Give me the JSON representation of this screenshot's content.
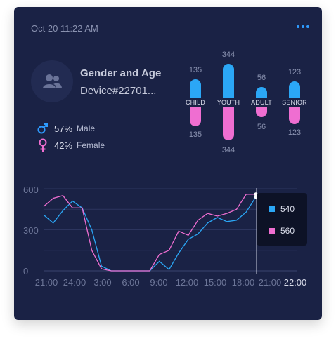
{
  "card": {
    "timestamp": "Oct 20 11:22 AM",
    "menu_icon": "more-horizontal-icon",
    "title": "Gender and Age",
    "device": "Device#22701...",
    "avatar_icon": "users-icon"
  },
  "gender": [
    {
      "label": "Male",
      "percent": "57%",
      "icon": "male-icon",
      "color": "#2e9bff"
    },
    {
      "label": "Female",
      "percent": "42%",
      "icon": "female-icon",
      "color": "#ef6ed1"
    }
  ],
  "age_groups": [
    {
      "name": "CHILD",
      "top_value": "135",
      "bottom_value": "135"
    },
    {
      "name": "YOUTH",
      "top_value": "344",
      "bottom_value": "344"
    },
    {
      "name": "ADULT",
      "top_value": "56",
      "bottom_value": "56"
    },
    {
      "name": "SENIOR",
      "top_value": "123",
      "bottom_value": "123"
    }
  ],
  "colors": {
    "blue": "#2ba7f6",
    "pink": "#ef6ed1",
    "background": "#1a2245",
    "accent": "#2e9bff"
  },
  "chart_data": {
    "type": "line",
    "y_ticks": [
      "600",
      "300",
      "0"
    ],
    "ylim": [
      0,
      600
    ],
    "x_ticks": [
      "21:00",
      "24:00",
      "3:00",
      "6:00",
      "9:00",
      "12:00",
      "15:00",
      "18:00",
      "21:00",
      "22:00"
    ],
    "grid": true,
    "series": [
      {
        "color": "#2ba7f6",
        "values": [
          410,
          350,
          440,
          510,
          460,
          300,
          35,
          0,
          0,
          0,
          0,
          0,
          70,
          10,
          130,
          230,
          270,
          350,
          390,
          360,
          370,
          430,
          540
        ]
      },
      {
        "color": "#ef6ed1",
        "values": [
          470,
          530,
          550,
          460,
          460,
          150,
          15,
          0,
          0,
          0,
          0,
          0,
          120,
          150,
          290,
          260,
          370,
          420,
          400,
          420,
          450,
          560,
          560
        ]
      }
    ],
    "tooltip": {
      "blue_value": "540",
      "pink_value": "560"
    }
  }
}
